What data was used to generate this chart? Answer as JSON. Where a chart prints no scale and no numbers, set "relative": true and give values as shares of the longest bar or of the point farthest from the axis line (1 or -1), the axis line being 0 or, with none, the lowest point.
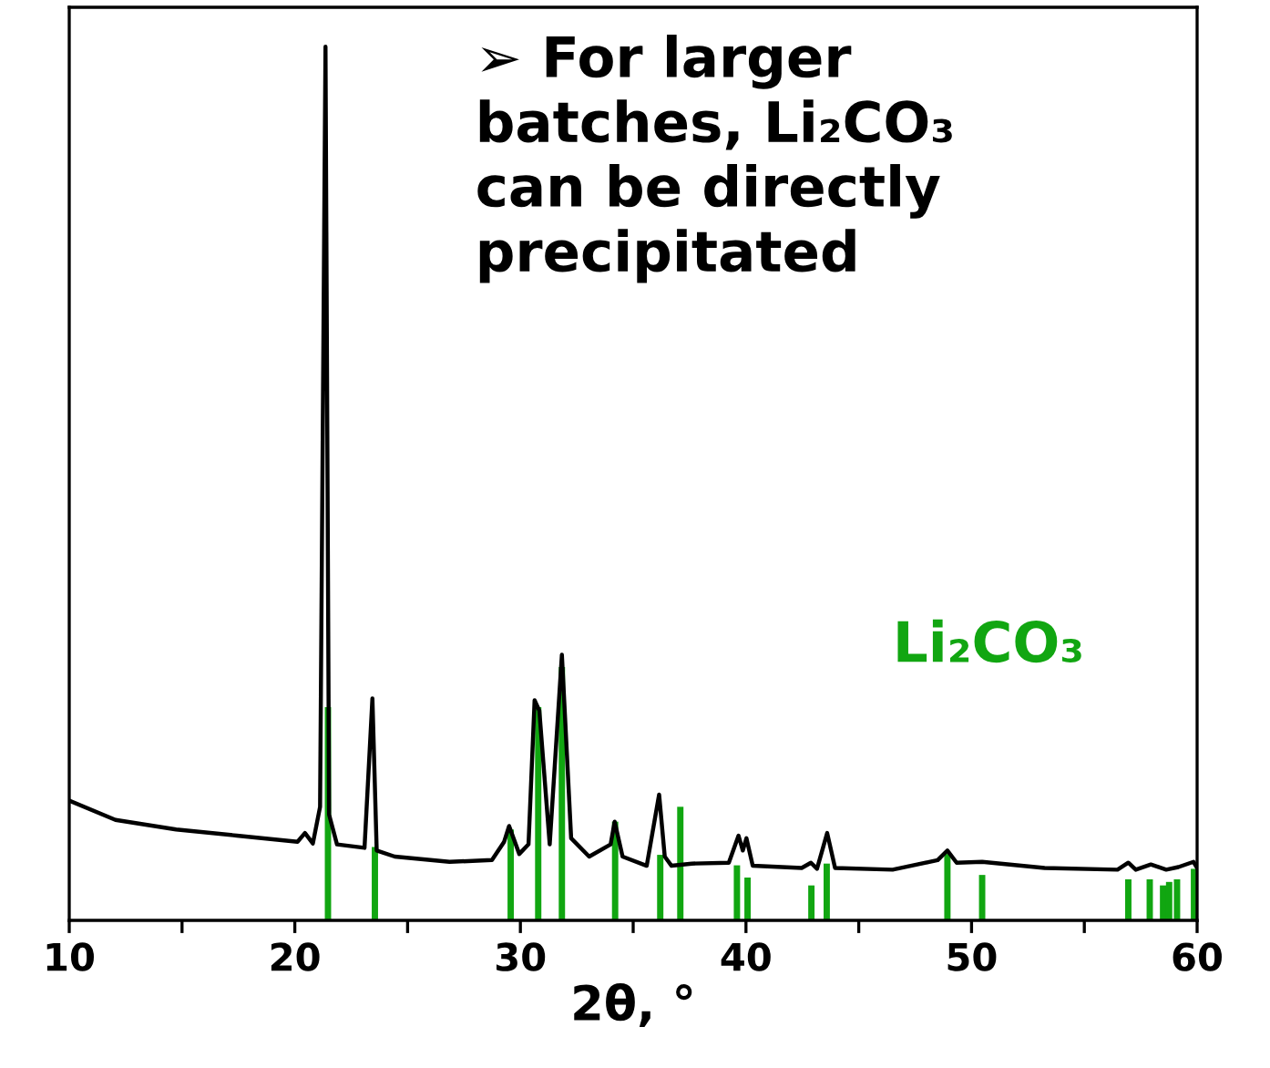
{
  "chart_data": {
    "type": "line",
    "relative": true,
    "xlabel": "2θ, °",
    "annotations": [
      "➢ For larger\nbatches, Li₂CO₃\ncan be directly\nprecipitated"
    ],
    "xlim": [
      10,
      60
    ],
    "xticks": [
      10,
      {
        "value": 15,
        "label": null
      },
      20,
      {
        "value": 25,
        "label": null
      },
      30,
      {
        "value": 35,
        "label": null
      },
      40,
      {
        "value": 45,
        "label": null
      },
      50,
      {
        "value": 55,
        "label": null
      },
      60
    ],
    "tick_labels": "x",
    "grid": false,
    "legend": false,
    "marker": "none",
    "line_style": "solid",
    "series": [
      {
        "color": "#000000",
        "x": [
          10.0,
          12.05,
          14.74,
          17.43,
          20.12,
          20.45,
          20.8,
          21.12,
          21.36,
          21.52,
          21.87,
          23.09,
          23.44,
          23.63,
          24.43,
          26.86,
          28.74,
          29.28,
          29.5,
          29.95,
          30.36,
          30.63,
          30.84,
          31.3,
          31.84,
          32.25,
          33.05,
          34.0,
          34.18,
          34.53,
          35.6,
          36.15,
          36.4,
          36.7,
          37.6,
          39.24,
          39.67,
          39.86,
          40.02,
          40.3,
          42.47,
          42.88,
          43.15,
          43.6,
          43.95,
          46.5,
          48.5,
          48.93,
          49.34,
          50.47,
          53.24,
          56.47,
          56.95,
          57.28,
          57.95,
          58.63,
          59.17,
          59.84,
          60.0
        ],
        "values": [
          0.137,
          0.115,
          0.104,
          0.097,
          0.09,
          0.1,
          0.088,
          0.13,
          1.0,
          0.121,
          0.087,
          0.083,
          0.254,
          0.08,
          0.073,
          0.067,
          0.069,
          0.09,
          0.108,
          0.076,
          0.087,
          0.252,
          0.24,
          0.087,
          0.304,
          0.094,
          0.073,
          0.087,
          0.113,
          0.073,
          0.0625,
          0.144,
          0.073,
          0.0625,
          0.065,
          0.066,
          0.097,
          0.08,
          0.094,
          0.0625,
          0.06,
          0.066,
          0.059,
          0.1,
          0.06,
          0.058,
          0.069,
          0.08,
          0.066,
          0.067,
          0.06,
          0.058,
          0.066,
          0.058,
          0.064,
          0.058,
          0.061,
          0.067,
          0.06
        ]
      },
      {
        "type": "bar",
        "name": "Li₂CO₃",
        "color": "#11a611",
        "x": [
          21.47,
          23.55,
          29.57,
          30.79,
          31.84,
          34.2,
          36.2,
          37.09,
          39.6,
          40.07,
          42.9,
          43.58,
          48.93,
          50.47,
          56.95,
          57.9,
          58.49,
          58.76,
          59.11,
          59.86
        ],
        "values": [
          0.244,
          0.084,
          0.104,
          0.244,
          0.29,
          0.113,
          0.075,
          0.13,
          0.063,
          0.049,
          0.04,
          0.065,
          0.076,
          0.052,
          0.047,
          0.047,
          0.04,
          0.044,
          0.047,
          0.059
        ]
      }
    ]
  }
}
